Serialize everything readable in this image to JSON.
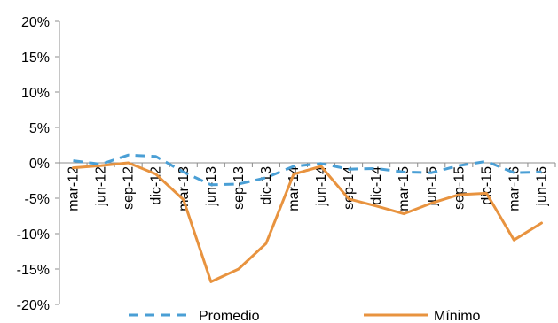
{
  "chart_data": {
    "type": "line",
    "x": [
      "mar-12",
      "jun-12",
      "sep-12",
      "dic-12",
      "mar-13",
      "jun-13",
      "sep-13",
      "dic-13",
      "mar-14",
      "jun-14",
      "sep-14",
      "dic-14",
      "mar-15",
      "jun-15",
      "sep-15",
      "dic-15",
      "mar-16",
      "jun-16"
    ],
    "ylim": [
      -20,
      20
    ],
    "yticks": [
      -20,
      -15,
      -10,
      -5,
      0,
      5,
      10,
      15,
      20
    ],
    "ytick_labels": [
      "-20%",
      "-15%",
      "-10%",
      "-5%",
      "0%",
      "5%",
      "10%",
      "15%",
      "20%"
    ],
    "series": [
      {
        "name": "Promedio",
        "color": "#4a9fd5",
        "style": "dashed",
        "values": [
          0.3,
          -0.2,
          1.1,
          0.9,
          -1.3,
          -3.1,
          -3.0,
          -2.1,
          -0.5,
          -0.1,
          -0.9,
          -0.8,
          -1.3,
          -1.4,
          -0.4,
          0.2,
          -1.4,
          -1.3
        ]
      },
      {
        "name": "Mínimo",
        "color": "#e8933f",
        "style": "solid",
        "values": [
          -0.7,
          -0.4,
          0.0,
          -1.6,
          -5.2,
          -16.8,
          -15.0,
          -11.4,
          -1.6,
          -0.5,
          -5.1,
          -6.1,
          -7.2,
          -5.7,
          -4.5,
          -4.3,
          -10.9,
          -8.5
        ]
      }
    ],
    "grid": false,
    "legend_position": "bottom"
  }
}
